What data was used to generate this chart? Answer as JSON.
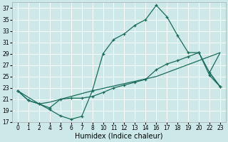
{
  "bg_color": "#cce8e8",
  "grid_color": "#ffffff",
  "line_color": "#1a6b5a",
  "xlabel": "Humidex (Indice chaleur)",
  "xlabel_fontsize": 7,
  "tick_fontsize": 5.5,
  "ylim": [
    17,
    38
  ],
  "y_ticks": [
    17,
    19,
    21,
    23,
    25,
    27,
    29,
    31,
    33,
    35,
    37
  ],
  "x_labels": [
    "0",
    "1",
    "2",
    "4",
    "5",
    "6",
    "7",
    "8",
    "10",
    "11",
    "12",
    "13",
    "14",
    "16",
    "17",
    "18",
    "19",
    "20",
    "22",
    "23"
  ],
  "line1_y": [
    22.5,
    20.8,
    20.2,
    19.2,
    18.1,
    17.5,
    18.0,
    22.5,
    29.0,
    31.5,
    32.5,
    34.0,
    35.0,
    37.5,
    35.5,
    32.2,
    29.2,
    29.2,
    25.7,
    23.2
  ],
  "line2_y": [
    22.5,
    20.8,
    20.2,
    19.5,
    21.0,
    21.2,
    21.2,
    21.5,
    22.2,
    23.0,
    23.5,
    24.0,
    24.5,
    26.2,
    27.2,
    27.8,
    28.5,
    29.2,
    25.2,
    23.2
  ],
  "line3_x_idx": [
    0,
    2,
    3,
    7,
    13,
    19,
    18,
    19
  ],
  "line3_y": [
    22.5,
    20.2,
    20.5,
    22.5,
    25.0,
    29.2,
    25.7,
    23.2
  ],
  "line1_markers": [
    0,
    1,
    2,
    3,
    4,
    5,
    6,
    7,
    8,
    9,
    10,
    11,
    12,
    13,
    14,
    15,
    16,
    17,
    18,
    19
  ],
  "line2_markers": [
    0,
    1,
    2,
    3,
    4,
    5,
    6,
    7,
    8,
    9,
    10,
    11,
    12,
    13,
    14,
    15,
    16,
    17,
    18,
    19
  ]
}
